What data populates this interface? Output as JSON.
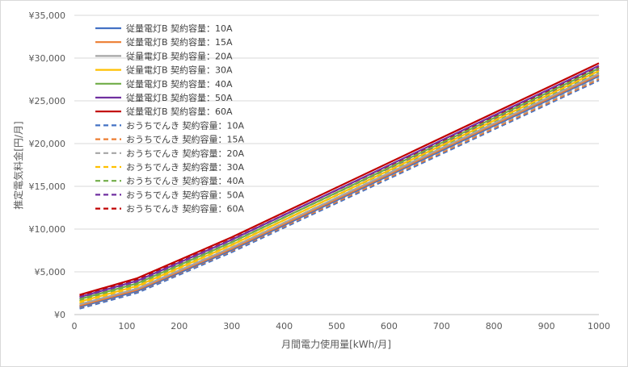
{
  "chart_data": {
    "type": "line",
    "title": "",
    "xlabel": "月間電力使用量[kWh/月]",
    "ylabel": "推定電気料金[円/月]",
    "xlim": [
      0,
      1000
    ],
    "ylim": [
      0,
      35000
    ],
    "x_ticks": [
      "0",
      "100",
      "200",
      "300",
      "400",
      "500",
      "600",
      "700",
      "800",
      "900",
      "1000"
    ],
    "y_ticks": [
      "¥0",
      "¥5,000",
      "¥10,000",
      "¥15,000",
      "¥20,000",
      "¥25,000",
      "¥30,000",
      "¥35,000"
    ],
    "grid": true,
    "legend_position": "top-left",
    "x": [
      10,
      120,
      300,
      1000
    ],
    "series": [
      {
        "name": "従量電灯B 契約容量：10A",
        "color": "#4472C4",
        "dash": false,
        "values": [
          900,
          2750,
          7550,
          27900
        ]
      },
      {
        "name": "従量電灯B 契約容量：15A",
        "color": "#ED7D31",
        "dash": false,
        "values": [
          1050,
          2900,
          7700,
          28050
        ]
      },
      {
        "name": "従量電灯B 契約容量：20A",
        "color": "#A5A5A5",
        "dash": false,
        "values": [
          1200,
          3050,
          7850,
          28200
        ]
      },
      {
        "name": "従量電灯B 契約容量：30A",
        "color": "#FFC000",
        "dash": false,
        "values": [
          1500,
          3350,
          8150,
          28500
        ]
      },
      {
        "name": "従量電灯B 契約容量：40A",
        "color": "#70AD47",
        "dash": false,
        "values": [
          1800,
          3650,
          8450,
          28800
        ]
      },
      {
        "name": "従量電灯B 契約容量：50A",
        "color": "#7030A0",
        "dash": false,
        "values": [
          2050,
          3950,
          8750,
          29100
        ]
      },
      {
        "name": "従量電灯B 契約容量：60A",
        "color": "#C00000",
        "dash": false,
        "values": [
          2300,
          4250,
          9050,
          29400
        ]
      },
      {
        "name": "おうちでんき 契約容量：10A",
        "color": "#4472C4",
        "dash": true,
        "values": [
          700,
          2550,
          7300,
          27400
        ]
      },
      {
        "name": "おうちでんき 契約容量：15A",
        "color": "#ED7D31",
        "dash": true,
        "values": [
          850,
          2700,
          7450,
          27550
        ]
      },
      {
        "name": "おうちでんき 契約容量：20A",
        "color": "#A5A5A5",
        "dash": true,
        "values": [
          1000,
          2850,
          7600,
          27700
        ]
      },
      {
        "name": "おうちでんき 契約容量：30A",
        "color": "#FFC000",
        "dash": true,
        "values": [
          1300,
          3150,
          7900,
          28000
        ]
      },
      {
        "name": "おうちでんき 契約容量：40A",
        "color": "#70AD47",
        "dash": true,
        "values": [
          1600,
          3450,
          8200,
          28300
        ]
      },
      {
        "name": "おうちでんき 契約容量：50A",
        "color": "#7030A0",
        "dash": true,
        "values": [
          1850,
          3750,
          8500,
          28600
        ]
      },
      {
        "name": "おうちでんき 契約容量：60A",
        "color": "#C00000",
        "dash": true,
        "values": [
          2100,
          4050,
          8800,
          28900
        ]
      }
    ]
  }
}
